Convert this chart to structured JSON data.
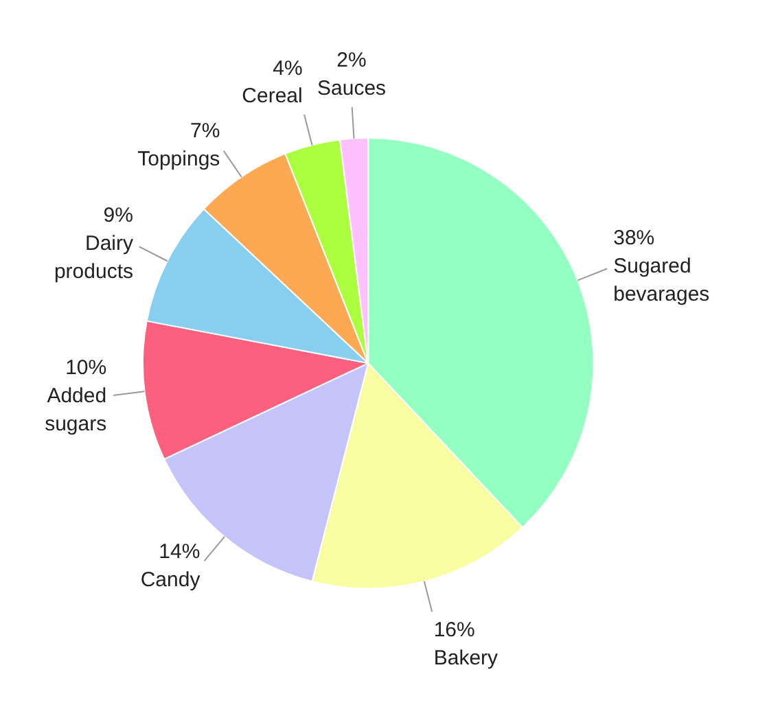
{
  "chart_data": {
    "type": "pie",
    "categories": [
      "Sugared bevarages",
      "Bakery",
      "Candy",
      "Added sugars",
      "Dairy products",
      "Toppings",
      "Cereal",
      "Sauces"
    ],
    "values": [
      38,
      16,
      14,
      10,
      9,
      7,
      4,
      2
    ],
    "value_labels": [
      "38%",
      "16%",
      "14%",
      "10%",
      "9%",
      "7%",
      "4%",
      "2%"
    ],
    "colors": [
      "#93ffc0",
      "#f9fca0",
      "#c4c4fb",
      "#fd5f7f",
      "#88cfef",
      "#fda852",
      "#abff3f",
      "#fec0fe"
    ]
  }
}
